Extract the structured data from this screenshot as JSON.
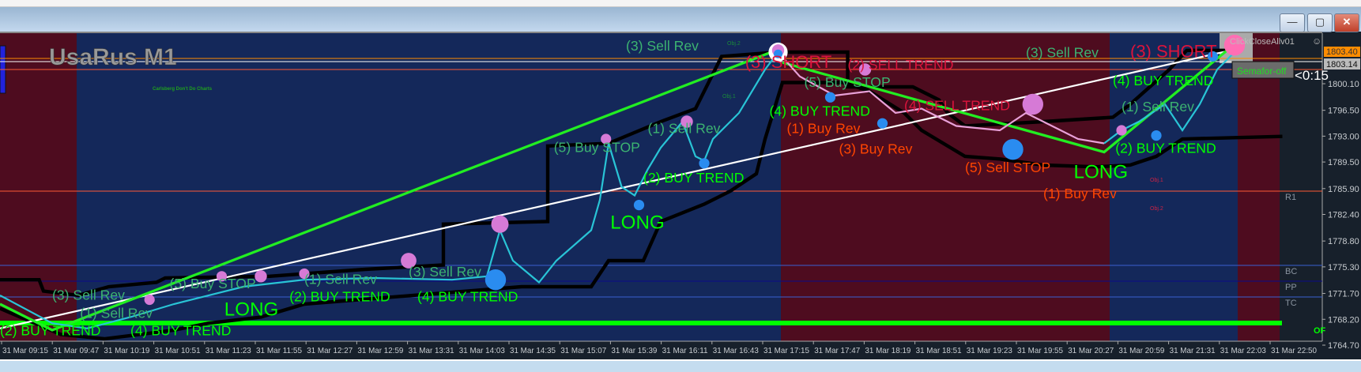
{
  "window": {
    "minimize_icon": "minimize-icon",
    "maximize_icon": "restore-icon",
    "close_icon": "close-icon",
    "minimize_glyph": "—",
    "maximize_glyph": "▢",
    "close_glyph": "✕"
  },
  "chart": {
    "symbol_title": "UsaRus M1",
    "subtitle": "Carlsberg Don't Do Charts",
    "expert_label": "ClickCloseAllv01",
    "expert_icon": "smiley-icon",
    "semafor_button": "Semafor-off",
    "countdown": "<0:15",
    "colors": {
      "bull_zone": "#14285a",
      "bear_zone": "#4e0c1f",
      "buy": "#00ff00",
      "sell": "#dc143c",
      "rev": "#3cb371",
      "orange": "#ff4500"
    }
  },
  "price_axis": {
    "labels": [
      "1800.10",
      "1796.50",
      "1793.00",
      "1789.50",
      "1785.90",
      "1782.40",
      "1778.80",
      "1775.30",
      "1771.70",
      "1768.20",
      "1764.70"
    ],
    "bid": "1803.14",
    "ask": "1803.40"
  },
  "pivot_labels": {
    "r1": "R1",
    "bc": "BC",
    "pp": "PP",
    "tc": "TC",
    "of": "OF"
  },
  "time_axis": {
    "labels": [
      "31 Mar 09:15",
      "31 Mar 09:47",
      "31 Mar 10:19",
      "31 Mar 10:51",
      "31 Mar 11:23",
      "31 Mar 11:55",
      "31 Mar 12:27",
      "31 Mar 12:59",
      "31 Mar 13:31",
      "31 Mar 14:03",
      "31 Mar 14:35",
      "31 Mar 15:07",
      "31 Mar 15:39",
      "31 Mar 16:11",
      "31 Mar 16:43",
      "31 Mar 17:15",
      "31 Mar 17:47",
      "31 Mar 18:19",
      "31 Mar 18:51",
      "31 Mar 19:23",
      "31 Mar 19:55",
      "31 Mar 20:27",
      "31 Mar 20:59",
      "31 Mar 21:31",
      "31 Mar 22:03",
      "31 Mar 22:50"
    ]
  },
  "signals": [
    {
      "text": "(3) Sell Rev",
      "kind": "rev"
    },
    {
      "text": "(3) SHORT",
      "kind": "sell"
    },
    {
      "text": "(2) SELL TREND",
      "kind": "sell"
    },
    {
      "text": "(5) Buy STOP",
      "kind": "rev"
    },
    {
      "text": "(4) BUY TREND",
      "kind": "buy"
    },
    {
      "text": "(1) Buy Rev",
      "kind": "orange"
    },
    {
      "text": "(4) SELL TREND",
      "kind": "sell"
    },
    {
      "text": "(3) Buy Rev",
      "kind": "orange"
    },
    {
      "text": "(5) Sell STOP",
      "kind": "orange"
    },
    {
      "text": "(1) Buy Rev",
      "kind": "orange"
    },
    {
      "text": "LONG",
      "kind": "buy"
    },
    {
      "text": "(1) Sell Rev",
      "kind": "rev"
    },
    {
      "text": "(2) BUY TREND",
      "kind": "buy"
    },
    {
      "text": "(3) Sell Rev",
      "kind": "rev"
    },
    {
      "text": "(3) SHORT",
      "kind": "sell"
    },
    {
      "text": "(4) BUY TREND",
      "kind": "buy"
    },
    {
      "text": "(1) Sell Rev",
      "kind": "rev"
    },
    {
      "text": "(5) Buy STOP",
      "kind": "rev"
    },
    {
      "text": "(2) BUY TREND",
      "kind": "buy"
    },
    {
      "text": "LONG",
      "kind": "buy"
    },
    {
      "text": "(5) Buy STOP",
      "kind": "rev"
    },
    {
      "text": "(1) Sell Rev",
      "kind": "rev"
    },
    {
      "text": "(3) Sell Rev",
      "kind": "rev"
    },
    {
      "text": "LONG",
      "kind": "buy"
    },
    {
      "text": "(2) BUY TREND",
      "kind": "buy"
    },
    {
      "text": "(4) BUY TREND",
      "kind": "buy"
    },
    {
      "text": "(1) Sell Rev",
      "kind": "rev"
    },
    {
      "text": "(3) Sell Rev",
      "kind": "rev"
    },
    {
      "text": "(4) BUY TREND",
      "kind": "buy"
    },
    {
      "text": "(2) BUY TREND",
      "kind": "buy"
    }
  ],
  "objects": [
    "Obj.1",
    "Obj.2",
    "Obj.1",
    "Obj.2"
  ]
}
